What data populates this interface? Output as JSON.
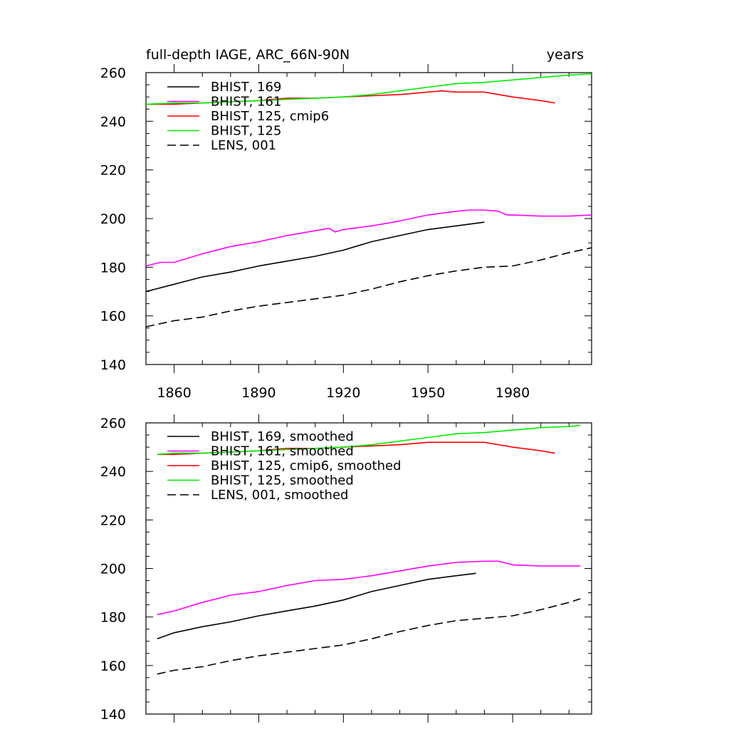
{
  "chart_data": [
    {
      "type": "line",
      "title": "full-depth IAGE, ARC_66N-90N",
      "units": "years",
      "xlim": [
        1850,
        2008
      ],
      "ylim": [
        140,
        260
      ],
      "xticks": [
        1860,
        1890,
        1920,
        1950,
        1980
      ],
      "xtick_labels": [
        "1860",
        "1890",
        "1920",
        "1950",
        "1980"
      ],
      "yticks": [
        140,
        160,
        180,
        200,
        220,
        240,
        260
      ],
      "ytick_labels": [
        "140",
        "160",
        "180",
        "200",
        "220",
        "240",
        "260"
      ],
      "legend": "top-left",
      "series": [
        {
          "name": "BHIST, 169",
          "color": "#000000",
          "dash": "solid",
          "x": [
            1850,
            1860,
            1870,
            1880,
            1890,
            1900,
            1910,
            1920,
            1930,
            1940,
            1950,
            1960,
            1970
          ],
          "y": [
            170,
            173,
            176,
            178,
            180.5,
            182.5,
            184.5,
            187,
            190.5,
            193,
            195.5,
            197,
            198.5
          ]
        },
        {
          "name": "BHIST, 161",
          "color": "#ff00ff",
          "dash": "solid",
          "x": [
            1850,
            1855,
            1860,
            1870,
            1880,
            1890,
            1900,
            1910,
            1915,
            1917,
            1920,
            1930,
            1940,
            1950,
            1960,
            1965,
            1970,
            1975,
            1978,
            1980,
            1990,
            2000,
            2008
          ],
          "y": [
            180.5,
            182,
            182,
            185.5,
            188.5,
            190.5,
            193,
            195,
            196,
            194.5,
            195.5,
            197,
            199,
            201.5,
            203,
            203.5,
            203.5,
            203,
            201.5,
            201.5,
            201,
            201,
            201.5
          ]
        },
        {
          "name": "BHIST, 125, cmip6",
          "color": "#ff0000",
          "dash": "solid",
          "x": [
            1850,
            1860,
            1870,
            1880,
            1890,
            1900,
            1910,
            1920,
            1930,
            1940,
            1950,
            1955,
            1960,
            1970,
            1975,
            1980,
            1990,
            1995
          ],
          "y": [
            247,
            247,
            247.5,
            248,
            248.5,
            249.5,
            249.5,
            250,
            250.5,
            251,
            252,
            252.5,
            252,
            252,
            251,
            250,
            248.5,
            247.5
          ]
        },
        {
          "name": "BHIST, 125",
          "color": "#00ee00",
          "dash": "solid",
          "x": [
            1850,
            1860,
            1870,
            1880,
            1890,
            1900,
            1910,
            1920,
            1930,
            1940,
            1950,
            1960,
            1970,
            1980,
            1990,
            2000,
            2008
          ],
          "y": [
            247,
            247.5,
            247.5,
            248,
            248.5,
            249,
            249.5,
            250,
            251,
            252.5,
            254,
            255.5,
            256,
            257,
            258,
            259,
            259.5
          ]
        },
        {
          "name": "LENS, 001",
          "color": "#000000",
          "dash": "dashed",
          "x": [
            1850,
            1860,
            1870,
            1880,
            1890,
            1900,
            1910,
            1920,
            1930,
            1940,
            1950,
            1960,
            1970,
            1980,
            1990,
            2000,
            2008
          ],
          "y": [
            155.5,
            158,
            159.5,
            162,
            164,
            165.5,
            167,
            168.5,
            171,
            174,
            176.5,
            178.5,
            180,
            180.5,
            183,
            186,
            188
          ]
        }
      ]
    },
    {
      "type": "line",
      "xlim": [
        1850,
        2008
      ],
      "ylim": [
        140,
        260
      ],
      "xticks": [
        1860,
        1890,
        1920,
        1950,
        1980
      ],
      "xtick_labels": [],
      "yticks": [
        140,
        160,
        180,
        200,
        220,
        240,
        260
      ],
      "ytick_labels": [
        "140",
        "160",
        "180",
        "200",
        "220",
        "240",
        "260"
      ],
      "legend": "top-left",
      "series": [
        {
          "name": "BHIST, 169, smoothed",
          "color": "#000000",
          "dash": "solid",
          "x": [
            1854,
            1860,
            1870,
            1880,
            1890,
            1900,
            1910,
            1920,
            1930,
            1940,
            1950,
            1960,
            1967
          ],
          "y": [
            171,
            173.5,
            176,
            178,
            180.5,
            182.5,
            184.5,
            187,
            190.5,
            193,
            195.5,
            197,
            198
          ]
        },
        {
          "name": "BHIST, 161, smoothed",
          "color": "#ff00ff",
          "dash": "solid",
          "x": [
            1854,
            1860,
            1870,
            1880,
            1890,
            1900,
            1910,
            1920,
            1930,
            1940,
            1950,
            1960,
            1970,
            1975,
            1980,
            1990,
            2000,
            2004
          ],
          "y": [
            181,
            182.5,
            186,
            189,
            190.5,
            193,
            195,
            195.5,
            197,
            199,
            201,
            202.5,
            203,
            203,
            201.5,
            201,
            201,
            201
          ]
        },
        {
          "name": "BHIST, 125, cmip6, smoothed",
          "color": "#ff0000",
          "dash": "solid",
          "x": [
            1854,
            1860,
            1870,
            1880,
            1890,
            1900,
            1910,
            1920,
            1930,
            1940,
            1950,
            1960,
            1970,
            1975,
            1980,
            1990,
            1995
          ],
          "y": [
            247,
            247,
            247.5,
            248,
            248.5,
            249.5,
            249.5,
            250,
            250.5,
            251,
            252,
            252,
            252,
            251,
            250,
            248.5,
            247.5
          ]
        },
        {
          "name": "BHIST, 125, smoothed",
          "color": "#00ee00",
          "dash": "solid",
          "x": [
            1854,
            1860,
            1870,
            1880,
            1890,
            1900,
            1910,
            1920,
            1930,
            1940,
            1950,
            1960,
            1970,
            1980,
            1990,
            2000,
            2004
          ],
          "y": [
            247,
            247.5,
            247.5,
            248,
            248.5,
            249,
            249.5,
            250,
            251,
            252.5,
            254,
            255.5,
            256,
            257,
            258,
            258.5,
            259
          ]
        },
        {
          "name": "LENS, 001, smoothed",
          "color": "#000000",
          "dash": "dashed",
          "x": [
            1854,
            1860,
            1870,
            1880,
            1890,
            1900,
            1910,
            1920,
            1930,
            1940,
            1950,
            1960,
            1970,
            1980,
            1990,
            2000,
            2004
          ],
          "y": [
            156.5,
            158,
            159.5,
            162,
            164,
            165.5,
            167,
            168.5,
            171,
            174,
            176.5,
            178.5,
            179.5,
            180.5,
            183,
            186,
            187.5
          ]
        }
      ]
    }
  ]
}
